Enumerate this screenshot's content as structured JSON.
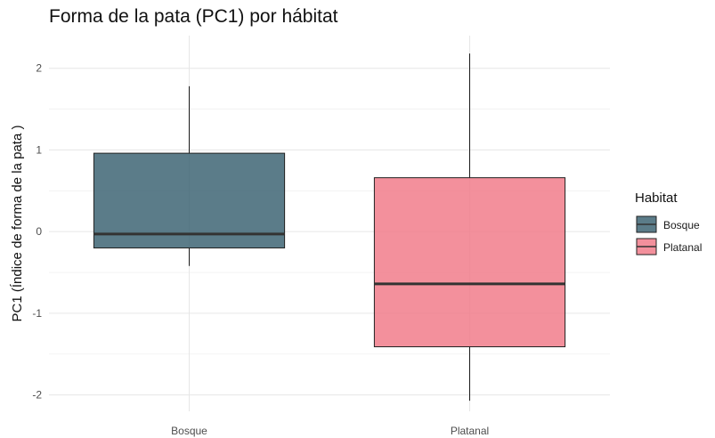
{
  "chart_data": {
    "type": "boxplot",
    "title": "Forma de la pata (PC1) por hábitat",
    "xlabel": "",
    "ylabel": "PC1 (Índice de forma de la pata )",
    "categories": [
      "Bosque",
      "Platanal"
    ],
    "ylim": [
      -2.2,
      2.4
    ],
    "yticks": [
      -2,
      -1,
      0,
      1,
      2
    ],
    "grid": true,
    "legend": {
      "title": "Habitat",
      "position": "right",
      "entries": [
        "Bosque",
        "Platanal"
      ]
    },
    "series": [
      {
        "category": "Bosque",
        "whisker_low": -0.42,
        "q1": -0.2,
        "median": -0.03,
        "q3": 0.96,
        "whisker_high": 1.78,
        "color": "#3a6271"
      },
      {
        "category": "Platanal",
        "whisker_low": -2.07,
        "q1": -1.41,
        "median": -0.64,
        "q3": 0.66,
        "whisker_high": 2.18,
        "color": "#f07a88"
      }
    ]
  }
}
